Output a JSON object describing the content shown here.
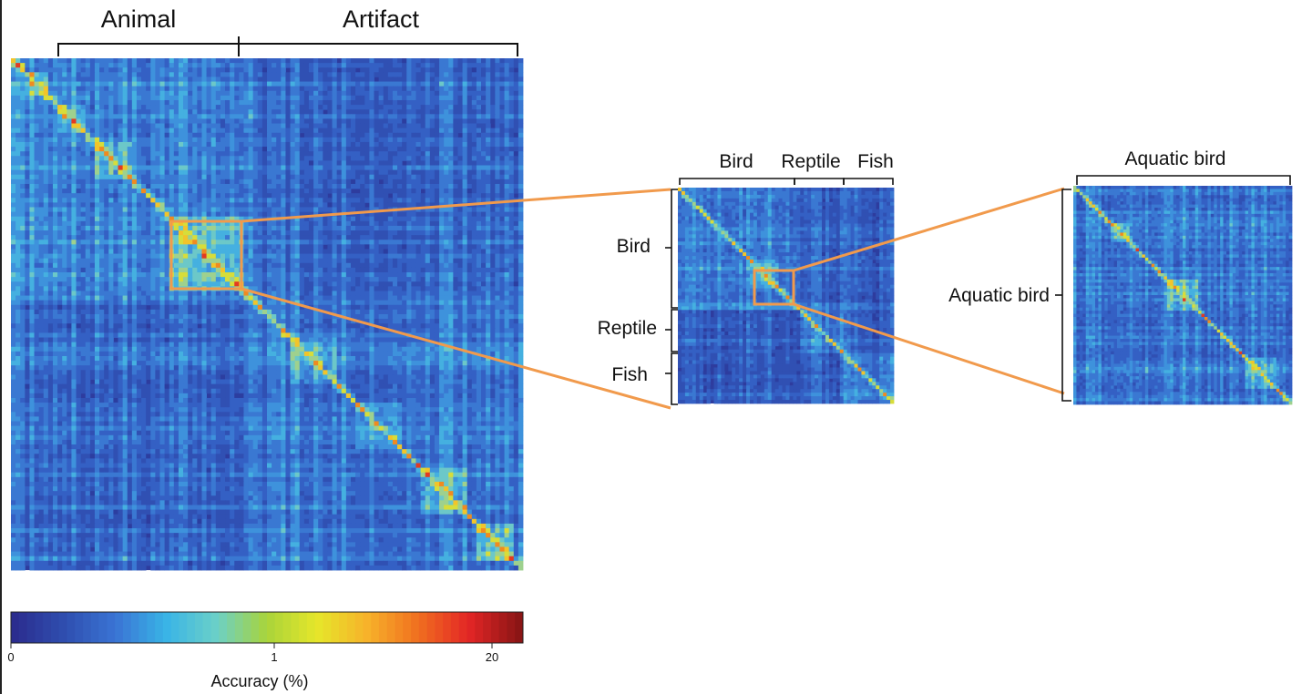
{
  "chart_data": [
    {
      "type": "heatmap",
      "panel": "full",
      "title": "",
      "top_groups": [
        "Animal",
        "Artifact"
      ],
      "side_groups": [],
      "zoom_box_label": ""
    },
    {
      "type": "heatmap",
      "panel": "zoom-1",
      "top_groups": [
        "Bird",
        "Reptile",
        "Fish"
      ],
      "side_groups": [
        "Bird",
        "Reptile",
        "Fish"
      ]
    },
    {
      "type": "heatmap",
      "panel": "zoom-2",
      "top_groups": [
        "Aquatic bird"
      ],
      "side_groups": [
        "Aquatic bird"
      ]
    }
  ],
  "colorbar": {
    "label": "Accuracy (%)",
    "ticks": [
      "0",
      "1",
      "20"
    ],
    "scale": "log",
    "colors": [
      "#2b2d8f",
      "#2f4fb0",
      "#3a74d4",
      "#39b4e6",
      "#6bd0c8",
      "#a9d43a",
      "#e6e62a",
      "#f7b12a",
      "#f06f1f",
      "#e32626",
      "#8b1515"
    ]
  },
  "colors": {
    "zoom_box": "#f19a4c",
    "base": "#2a3a9a"
  }
}
